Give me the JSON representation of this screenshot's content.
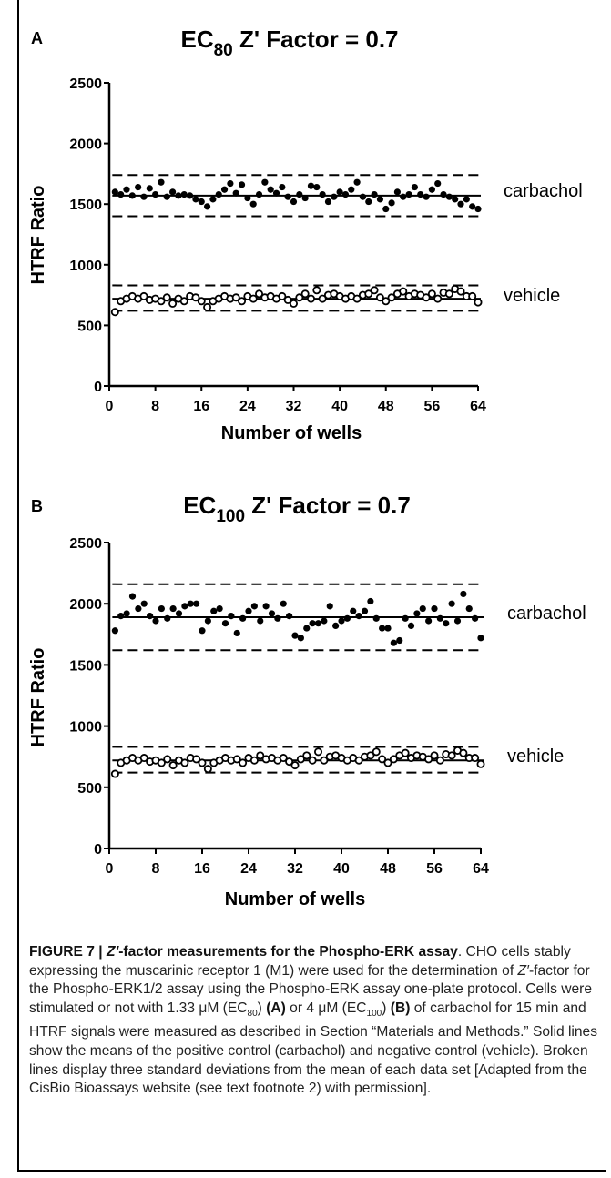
{
  "chart_data": [
    {
      "type": "scatter",
      "panel": "A",
      "title_main": "EC",
      "title_sub": "80",
      "title_rest": " Z' Factor = 0.7",
      "xlabel": "Number of wells",
      "ylabel": "HTRF Ratio",
      "xlim": [
        0,
        64
      ],
      "ylim": [
        0,
        2500
      ],
      "xticks": [
        0,
        8,
        16,
        24,
        32,
        40,
        48,
        56,
        64
      ],
      "yticks": [
        0,
        500,
        1000,
        1500,
        2000,
        2500
      ],
      "series": [
        {
          "name": "carbachol",
          "marker": "filled",
          "mean": 1570,
          "upper": 1740,
          "lower": 1400,
          "x": [
            1,
            2,
            3,
            4,
            5,
            6,
            7,
            8,
            9,
            10,
            11,
            12,
            13,
            14,
            15,
            16,
            17,
            18,
            19,
            20,
            21,
            22,
            23,
            24,
            25,
            26,
            27,
            28,
            29,
            30,
            31,
            32,
            33,
            34,
            35,
            36,
            37,
            38,
            39,
            40,
            41,
            42,
            43,
            44,
            45,
            46,
            47,
            48,
            49,
            50,
            51,
            52,
            53,
            54,
            55,
            56,
            57,
            58,
            59,
            60,
            61,
            62,
            63,
            64
          ],
          "values": [
            1600,
            1580,
            1620,
            1570,
            1640,
            1560,
            1630,
            1580,
            1680,
            1560,
            1600,
            1570,
            1580,
            1570,
            1540,
            1520,
            1480,
            1540,
            1580,
            1620,
            1670,
            1590,
            1660,
            1550,
            1500,
            1580,
            1680,
            1620,
            1590,
            1640,
            1560,
            1520,
            1580,
            1550,
            1650,
            1640,
            1580,
            1520,
            1560,
            1600,
            1580,
            1620,
            1680,
            1560,
            1520,
            1580,
            1540,
            1460,
            1510,
            1600,
            1560,
            1580,
            1640,
            1580,
            1560,
            1620,
            1670,
            1580,
            1560,
            1540,
            1500,
            1540,
            1480,
            1460
          ]
        },
        {
          "name": "vehicle",
          "marker": "open",
          "mean": 720,
          "upper": 830,
          "lower": 620,
          "x": [
            1,
            2,
            3,
            4,
            5,
            6,
            7,
            8,
            9,
            10,
            11,
            12,
            13,
            14,
            15,
            16,
            17,
            18,
            19,
            20,
            21,
            22,
            23,
            24,
            25,
            26,
            27,
            28,
            29,
            30,
            31,
            32,
            33,
            34,
            35,
            36,
            37,
            38,
            39,
            40,
            41,
            42,
            43,
            44,
            45,
            46,
            47,
            48,
            49,
            50,
            51,
            52,
            53,
            54,
            55,
            56,
            57,
            58,
            59,
            60,
            61,
            62,
            63,
            64
          ],
          "values": [
            610,
            700,
            720,
            740,
            720,
            740,
            710,
            720,
            700,
            730,
            680,
            720,
            700,
            740,
            730,
            700,
            650,
            700,
            720,
            740,
            720,
            730,
            700,
            740,
            720,
            760,
            730,
            740,
            720,
            740,
            710,
            680,
            730,
            760,
            720,
            790,
            720,
            750,
            760,
            740,
            720,
            740,
            720,
            750,
            760,
            790,
            730,
            700,
            730,
            760,
            780,
            740,
            760,
            750,
            730,
            760,
            720,
            770,
            760,
            800,
            780,
            740,
            740,
            690
          ]
        }
      ]
    },
    {
      "type": "scatter",
      "panel": "B",
      "title_main": "EC",
      "title_sub": "100",
      "title_rest": " Z' Factor = 0.7",
      "xlabel": "Number of wells",
      "ylabel": "HTRF Ratio",
      "xlim": [
        0,
        64
      ],
      "ylim": [
        0,
        2500
      ],
      "xticks": [
        0,
        8,
        16,
        24,
        32,
        40,
        48,
        56,
        64
      ],
      "yticks": [
        0,
        500,
        1000,
        1500,
        2000,
        2500
      ],
      "series": [
        {
          "name": "carbachol",
          "marker": "filled",
          "mean": 1890,
          "upper": 2160,
          "lower": 1620,
          "x": [
            1,
            2,
            3,
            4,
            5,
            6,
            7,
            8,
            9,
            10,
            11,
            12,
            13,
            14,
            15,
            16,
            17,
            18,
            19,
            20,
            21,
            22,
            23,
            24,
            25,
            26,
            27,
            28,
            29,
            30,
            31,
            32,
            33,
            34,
            35,
            36,
            37,
            38,
            39,
            40,
            41,
            42,
            43,
            44,
            45,
            46,
            47,
            48,
            49,
            50,
            51,
            52,
            53,
            54,
            55,
            56,
            57,
            58,
            59,
            60,
            61,
            62,
            63,
            64
          ],
          "values": [
            1780,
            1900,
            1920,
            2060,
            1960,
            2000,
            1900,
            1860,
            1960,
            1880,
            1960,
            1920,
            1980,
            2000,
            2000,
            1780,
            1860,
            1940,
            1960,
            1840,
            1900,
            1760,
            1880,
            1940,
            1980,
            1860,
            1980,
            1920,
            1880,
            2000,
            1900,
            1740,
            1720,
            1800,
            1840,
            1840,
            1860,
            1980,
            1820,
            1860,
            1880,
            1940,
            1900,
            1940,
            2020,
            1880,
            1800,
            1800,
            1680,
            1700,
            1880,
            1820,
            1920,
            1960,
            1860,
            1960,
            1880,
            1840,
            2000,
            1860,
            2080,
            1960,
            1880,
            1720
          ]
        },
        {
          "name": "vehicle",
          "marker": "open",
          "mean": 720,
          "upper": 830,
          "lower": 620,
          "x": [
            1,
            2,
            3,
            4,
            5,
            6,
            7,
            8,
            9,
            10,
            11,
            12,
            13,
            14,
            15,
            16,
            17,
            18,
            19,
            20,
            21,
            22,
            23,
            24,
            25,
            26,
            27,
            28,
            29,
            30,
            31,
            32,
            33,
            34,
            35,
            36,
            37,
            38,
            39,
            40,
            41,
            42,
            43,
            44,
            45,
            46,
            47,
            48,
            49,
            50,
            51,
            52,
            53,
            54,
            55,
            56,
            57,
            58,
            59,
            60,
            61,
            62,
            63,
            64
          ],
          "values": [
            610,
            700,
            720,
            740,
            720,
            740,
            710,
            720,
            700,
            730,
            680,
            720,
            700,
            740,
            730,
            700,
            650,
            700,
            720,
            740,
            720,
            730,
            700,
            740,
            720,
            760,
            730,
            740,
            720,
            740,
            710,
            680,
            730,
            760,
            720,
            790,
            720,
            750,
            760,
            740,
            720,
            740,
            720,
            750,
            760,
            790,
            730,
            700,
            730,
            760,
            780,
            740,
            760,
            750,
            730,
            760,
            720,
            770,
            760,
            800,
            780,
            740,
            740,
            690
          ]
        }
      ]
    }
  ],
  "caption": {
    "fig_label": "FIGURE 7 | ",
    "z_prime": "Z′",
    "heading_rest": "-factor measurements for the Phospho-ERK assay",
    "s1": ". CHO cells stably expressing the muscarinic receptor 1 (M1) were used for the determination of ",
    "s1_z": "Z′",
    "s2": "-factor for the Phospho-ERK1/2 assay using the Phospho-ERK assay one-plate protocol. Cells were stimulated or not with 1.33 μM (EC",
    "s2_sub": "80",
    "s3": ") ",
    "s3_a": "(A)",
    "s4": " or 4 μM (EC",
    "s4_sub": "100",
    "s5": ") ",
    "s5_b": "(B)",
    "s6": " of carbachol for 15 min and HTRF signals were measured as described in Section “Materials and Methods.” Solid lines show the means of the positive control (carbachol) and negative control (vehicle). Broken lines display three standard deviations from the mean of each data set [Adapted from the CisBio Bioassays website (see text footnote 2) with permission]."
  }
}
